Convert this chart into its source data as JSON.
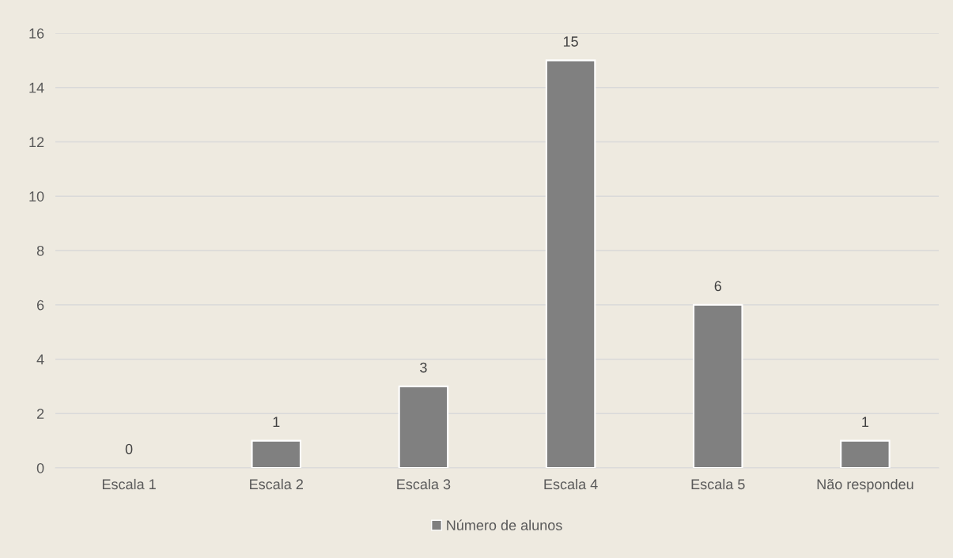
{
  "chart_data": {
    "type": "bar",
    "categories": [
      "Escala 1",
      "Escala 2",
      "Escala 3",
      "Escala 4",
      "Escala 5",
      "Não respondeu"
    ],
    "series": [
      {
        "name": "Número de alunos",
        "color": "#808080",
        "values": [
          0,
          1,
          3,
          15,
          6,
          1
        ]
      }
    ],
    "ylim": [
      0,
      16
    ],
    "yticks": [
      0,
      2,
      4,
      6,
      8,
      10,
      12,
      14,
      16
    ],
    "grid": "y",
    "legend": "bottom",
    "data_labels": true
  }
}
